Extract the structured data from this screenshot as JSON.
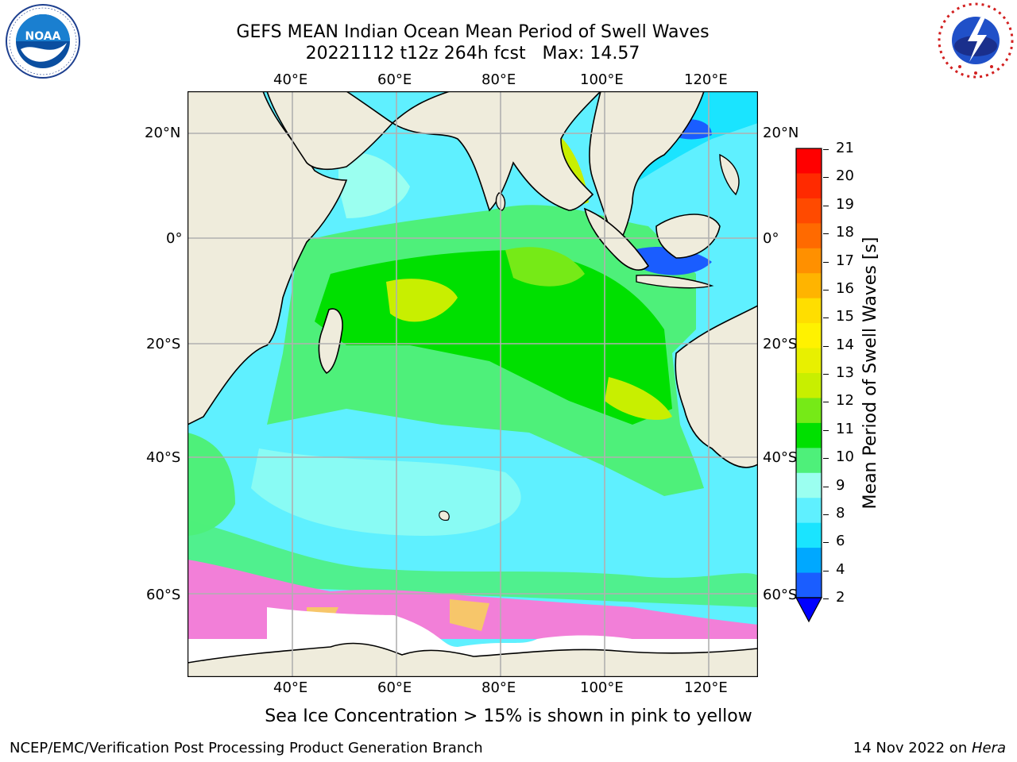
{
  "header": {
    "title_line1": "GEFS MEAN Indian Ocean Mean Period of Swell Waves",
    "title_line2": "20221112 t12z 264h fcst   Max: 14.57"
  },
  "logos": {
    "left": {
      "name": "noaa-logo",
      "text": "NOAA",
      "ring_text": "NATIONAL OCEANIC AND ATMOSPHERIC ADMINISTRATION · U.S. DEPARTMENT OF COMMERCE"
    },
    "right": {
      "name": "nws-logo",
      "ring_text": "NATIONAL WEATHER SERVICE"
    }
  },
  "map": {
    "lon_labels": [
      "40°E",
      "60°E",
      "80°E",
      "100°E",
      "120°E"
    ],
    "lat_labels": [
      "20°N",
      "0°",
      "20°S",
      "40°S",
      "60°S"
    ],
    "lon_ticks_deg": [
      40,
      60,
      80,
      100,
      120
    ],
    "lat_ticks_deg": [
      20,
      0,
      -20,
      -40,
      -60
    ],
    "colors": {
      "land": "#efecdc",
      "grid": "#b0b0b0",
      "ice_pink": "#f27fd8",
      "ice_yellow": "#f7c66a"
    }
  },
  "colorbar": {
    "label": "Mean Period of Swell Waves [s]",
    "ticks": [
      "21",
      "20",
      "19",
      "18",
      "17",
      "16",
      "15",
      "14",
      "13",
      "12",
      "11",
      "10",
      "9",
      "8",
      "6",
      "4",
      "2"
    ],
    "colors_top_to_bottom": [
      "#ff0000",
      "#ff2a00",
      "#ff4a00",
      "#ff6a00",
      "#ff9000",
      "#ffb400",
      "#ffde00",
      "#fff200",
      "#e8f000",
      "#c8ef00",
      "#76ea17",
      "#00e000",
      "#4ef07a",
      "#9bfff0",
      "#5ff0ff",
      "#1ae4ff",
      "#00a8ff",
      "#1a5dff"
    ],
    "extend_color": "#0000ff"
  },
  "footer": {
    "note": "Sea Ice Concentration > 15% is shown in pink to yellow",
    "left": "NCEP/EMC/Verification Post Processing Product Generation Branch",
    "right_date": "14 Nov 2022 on ",
    "right_machine": "Hera"
  }
}
